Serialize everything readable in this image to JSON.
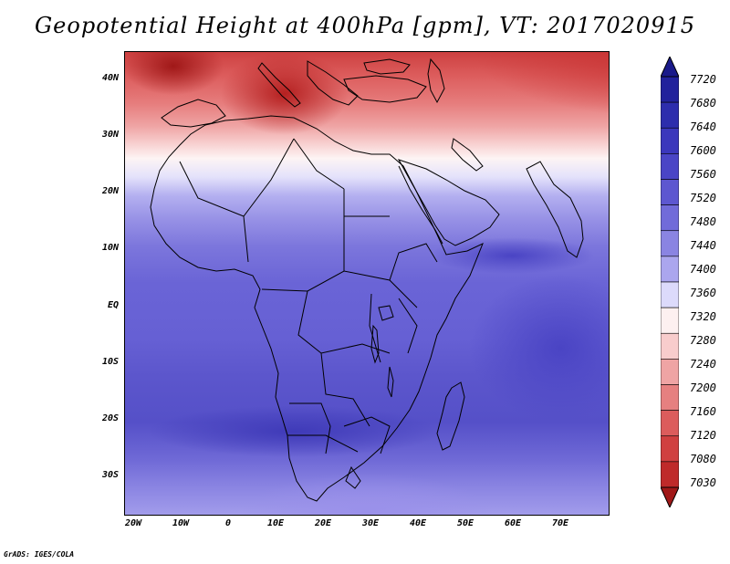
{
  "title": "Geopotential Height at 400hPa [gpm], VT: 2017020915",
  "credit": "GrADS: IGES/COLA",
  "map": {
    "variable": "Geopotential Height",
    "level_hPa": 400,
    "units": "gpm",
    "valid_time": "2017020915",
    "lat_range": [
      -37,
      45
    ],
    "lon_range": [
      -22,
      80
    ],
    "lat_ticks": [
      "40N",
      "30N",
      "20N",
      "10N",
      "EQ",
      "10S",
      "20S",
      "30S"
    ],
    "lat_tick_values": [
      40,
      30,
      20,
      10,
      0,
      -10,
      -20,
      -30
    ],
    "lon_ticks": [
      "20W",
      "10W",
      "0",
      "10E",
      "20E",
      "30E",
      "40E",
      "50E",
      "60E",
      "70E"
    ],
    "lon_tick_values": [
      -20,
      -10,
      0,
      10,
      20,
      30,
      40,
      50,
      60,
      70
    ]
  },
  "colorbar": {
    "labels": [
      "7720",
      "7680",
      "7640",
      "7600",
      "7560",
      "7520",
      "7480",
      "7440",
      "7400",
      "7360",
      "7320",
      "7280",
      "7240",
      "7200",
      "7160",
      "7120",
      "7080",
      "7030"
    ],
    "colors": [
      "#1a1a8a",
      "#22229c",
      "#2d2dad",
      "#3b37bc",
      "#4a45c6",
      "#5d57d0",
      "#716bd9",
      "#8a84e2",
      "#aba6ee",
      "#dcdafb",
      "#fdf0f0",
      "#f8cccc",
      "#efa4a4",
      "#e68080",
      "#dc5c5c",
      "#d04040",
      "#bf2a2a",
      "#a01818"
    ]
  }
}
